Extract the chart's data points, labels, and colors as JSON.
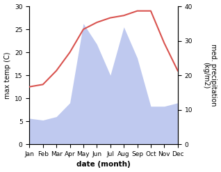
{
  "months": [
    "Jan",
    "Feb",
    "Mar",
    "Apr",
    "May",
    "Jun",
    "Jul",
    "Aug",
    "Sep",
    "Oct",
    "Nov",
    "Dec"
  ],
  "temperature": [
    12.5,
    13.0,
    16.0,
    20.0,
    25.0,
    26.5,
    27.5,
    28.0,
    29.0,
    29.0,
    22.0,
    16.0
  ],
  "precipitation": [
    7.5,
    7.0,
    8.0,
    12.0,
    35.0,
    29.0,
    20.0,
    34.0,
    25.0,
    11.0,
    11.0,
    12.0
  ],
  "temp_color": "#d9534f",
  "precip_color": "#b8c4ee",
  "temp_ylim": [
    0,
    30
  ],
  "precip_ylim": [
    0,
    40
  ],
  "temp_yticks": [
    0,
    5,
    10,
    15,
    20,
    25,
    30
  ],
  "precip_yticks": [
    0,
    10,
    20,
    30,
    40
  ],
  "xlabel": "date (month)",
  "ylabel_left": "max temp (C)",
  "ylabel_right": "med. precipitation\n(kg/m2)",
  "label_fontsize": 7,
  "tick_fontsize": 6.5
}
